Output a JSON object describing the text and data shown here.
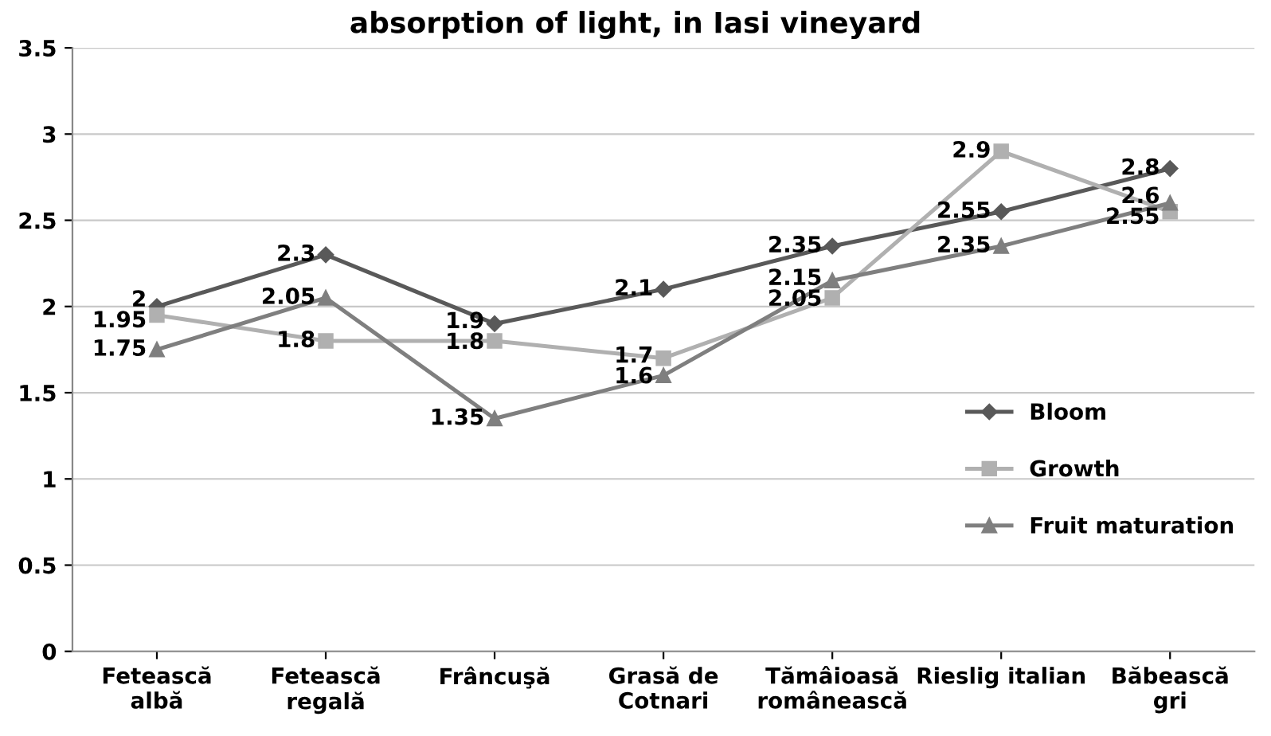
{
  "chart_data": {
    "type": "line",
    "title": "absorption of light, in Iasi vineyard",
    "categories": [
      "Fetească\nalbă",
      "Fetească\nregală",
      "Frâncuşă",
      "Grasă de\nCotnari",
      "Tămâioasă\nromânească",
      "Rieslig italian",
      "Băbească\ngri"
    ],
    "series": [
      {
        "name": "Bloom",
        "color": "#595959",
        "marker": "diamond",
        "values": [
          2,
          2.3,
          1.9,
          2.1,
          2.35,
          2.55,
          2.8
        ]
      },
      {
        "name": "Growth",
        "color": "#b0b0b0",
        "marker": "square",
        "values": [
          1.95,
          1.8,
          1.8,
          1.7,
          2.05,
          2.9,
          2.55
        ]
      },
      {
        "name": "Fruit maturation",
        "color": "#7f7f7f",
        "marker": "triangle",
        "values": [
          1.75,
          2.05,
          1.35,
          1.6,
          2.15,
          2.35,
          2.6
        ]
      }
    ],
    "ylim": [
      0,
      3.5
    ],
    "yticks": [
      0,
      0.5,
      1,
      1.5,
      2,
      2.5,
      3,
      3.5
    ],
    "grid": "y",
    "legend": "right",
    "data_labels": true,
    "line_style": "solid"
  }
}
